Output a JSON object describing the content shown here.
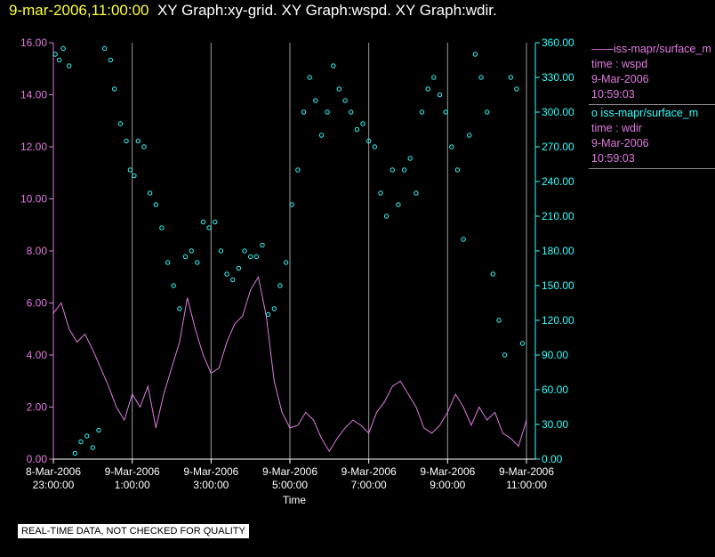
{
  "header": {
    "timestamp": "9-mar-2006,11:00:00",
    "titles": "XY Graph:xy-grid.  XY Graph:wspd.  XY Graph:wdir."
  },
  "legend": {
    "series1_line": "——iss-mapr/surface_m",
    "series1_time": "time : wspd",
    "series1_date": "9-Mar-2006",
    "series1_clock": "10:59:03",
    "series2_line": "o  iss-mapr/surface_m",
    "series2_time": "time : wdir",
    "series2_date": "9-Mar-2006",
    "series2_clock": "10:59:03"
  },
  "disclaimer": "REAL-TIME DATA, NOT CHECKED FOR QUALITY",
  "colors": {
    "wspd": "#e07ae0",
    "wdir": "#33ffff",
    "grid": "#9a9a9a",
    "background": "#000000"
  },
  "chart_data": {
    "type": "line",
    "xlabel": "Time",
    "x_ticks": [
      [
        "8-Mar-2006",
        "23:00:00"
      ],
      [
        "9-Mar-2006",
        "1:00:00"
      ],
      [
        "9-Mar-2006",
        "3:00:00"
      ],
      [
        "9-Mar-2006",
        "5:00:00"
      ],
      [
        "9-Mar-2006",
        "7:00:00"
      ],
      [
        "9-Mar-2006",
        "9:00:00"
      ],
      [
        "9-Mar-2006",
        "11:00:00"
      ]
    ],
    "x_tick_hours": [
      -1,
      1,
      3,
      5,
      7,
      9,
      11
    ],
    "vertical_grid_hours": [
      1,
      3,
      5,
      7,
      9,
      11
    ],
    "xlim_hours": [
      -1,
      11
    ],
    "left_axis": {
      "ylim": [
        0,
        16
      ],
      "ticks": [
        "0.00",
        "2.00",
        "4.00",
        "6.00",
        "8.00",
        "10.00",
        "12.00",
        "14.00",
        "16.00"
      ]
    },
    "right_axis": {
      "ylim": [
        0,
        360
      ],
      "ticks": [
        "0.00",
        "30.00",
        "60.00",
        "90.00",
        "120.00",
        "150.00",
        "180.00",
        "210.00",
        "240.00",
        "270.00",
        "300.00",
        "330.00",
        "360.00"
      ]
    },
    "series": [
      {
        "key": "wspd",
        "style": "line",
        "axis": "left",
        "x": [
          -1.0,
          -0.8,
          -0.6,
          -0.4,
          -0.2,
          0.0,
          0.2,
          0.4,
          0.6,
          0.8,
          1.0,
          1.2,
          1.4,
          1.6,
          1.8,
          2.0,
          2.2,
          2.4,
          2.6,
          2.8,
          3.0,
          3.2,
          3.4,
          3.6,
          3.8,
          4.0,
          4.2,
          4.4,
          4.6,
          4.8,
          5.0,
          5.2,
          5.4,
          5.6,
          5.8,
          6.0,
          6.2,
          6.4,
          6.6,
          6.8,
          7.0,
          7.2,
          7.4,
          7.6,
          7.8,
          8.0,
          8.2,
          8.4,
          8.6,
          8.8,
          9.0,
          9.2,
          9.4,
          9.6,
          9.8,
          10.0,
          10.2,
          10.4,
          10.6,
          10.8,
          11.0
        ],
        "values": [
          5.6,
          6.0,
          5.0,
          4.5,
          4.8,
          4.2,
          3.5,
          2.8,
          2.0,
          1.5,
          2.5,
          2.0,
          2.8,
          1.2,
          2.5,
          3.5,
          4.5,
          6.2,
          5.0,
          4.0,
          3.3,
          3.5,
          4.5,
          5.2,
          5.5,
          6.5,
          7.0,
          5.5,
          3.0,
          1.8,
          1.2,
          1.3,
          1.8,
          1.5,
          0.8,
          0.3,
          0.8,
          1.2,
          1.5,
          1.3,
          1.0,
          1.8,
          2.2,
          2.8,
          3.0,
          2.5,
          2.0,
          1.2,
          1.0,
          1.3,
          1.8,
          2.5,
          2.0,
          1.3,
          2.0,
          1.5,
          1.8,
          1.0,
          0.8,
          0.5,
          1.5
        ]
      },
      {
        "key": "wdir",
        "style": "scatter",
        "axis": "right",
        "x": [
          -0.95,
          -0.85,
          -0.75,
          -0.6,
          -0.45,
          -0.3,
          -0.15,
          0.0,
          0.15,
          0.3,
          0.45,
          0.55,
          0.7,
          0.85,
          0.95,
          1.05,
          1.15,
          1.3,
          1.45,
          1.6,
          1.75,
          1.9,
          2.05,
          2.2,
          2.35,
          2.5,
          2.65,
          2.8,
          2.95,
          3.1,
          3.25,
          3.4,
          3.55,
          3.7,
          3.85,
          4.0,
          4.15,
          4.3,
          4.45,
          4.6,
          4.75,
          4.9,
          5.05,
          5.2,
          5.35,
          5.5,
          5.65,
          5.8,
          5.95,
          6.1,
          6.25,
          6.4,
          6.55,
          6.7,
          6.85,
          7.0,
          7.15,
          7.3,
          7.45,
          7.6,
          7.75,
          7.9,
          8.05,
          8.2,
          8.35,
          8.5,
          8.65,
          8.8,
          8.95,
          9.1,
          9.25,
          9.4,
          9.55,
          9.7,
          9.85,
          10.0,
          10.15,
          10.3,
          10.45,
          10.6,
          10.75,
          10.9
        ],
        "values": [
          350,
          345,
          355,
          340,
          5,
          15,
          20,
          10,
          25,
          355,
          345,
          320,
          290,
          275,
          250,
          245,
          275,
          270,
          230,
          220,
          200,
          170,
          150,
          130,
          175,
          180,
          170,
          205,
          200,
          205,
          180,
          160,
          155,
          165,
          180,
          175,
          175,
          185,
          125,
          130,
          150,
          170,
          220,
          250,
          300,
          330,
          310,
          280,
          300,
          340,
          320,
          310,
          300,
          285,
          290,
          275,
          270,
          230,
          210,
          250,
          220,
          250,
          260,
          230,
          300,
          320,
          330,
          315,
          300,
          270,
          250,
          190,
          280,
          350,
          330,
          300,
          160,
          120,
          90,
          330,
          320,
          100
        ]
      }
    ]
  }
}
